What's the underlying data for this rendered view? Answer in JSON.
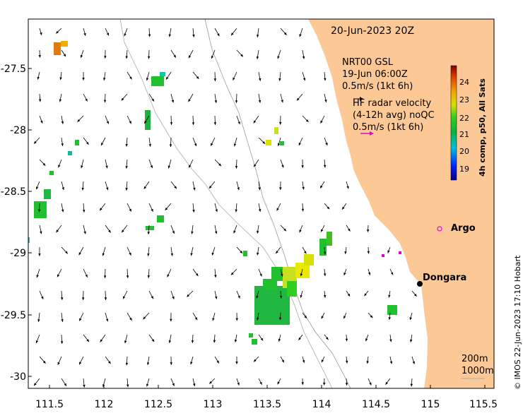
{
  "map": {
    "date": "20-Jun-2023 20Z",
    "gsl": {
      "title": "NRT00 GSL",
      "time": "19-Jun 06:00Z",
      "scale": "0.5m/s (1kt 6h)"
    },
    "hf": {
      "line1": "HF radar velocity",
      "line2": "(4-12h avg) noQC",
      "scale": "0.5m/s (1kt 6h)",
      "arrow_color": "#e000e0"
    },
    "lon_ticks": [
      "111.5",
      "112",
      "112.5",
      "113",
      "113.5",
      "114",
      "114.5",
      "115",
      "115.5"
    ],
    "lat_ticks": [
      "-27.5",
      "-28",
      "-28.5",
      "-29",
      "-29.5",
      "-30"
    ],
    "places": [
      {
        "name": "Argo",
        "marker": "ring",
        "color": "#e000e0"
      },
      {
        "name": "Dongara",
        "marker": "dot",
        "color": "#000000"
      }
    ],
    "depth_scale": [
      "200m",
      "1000m"
    ],
    "land_color": "#fcc896",
    "colorbar": {
      "title": "4h comp, p50, All Sats",
      "ticks": [
        "24",
        "23",
        "22",
        "21",
        "20",
        "19"
      ]
    },
    "copyright": "© IMOS 22-Jun-2023 17:10 Hobart"
  }
}
